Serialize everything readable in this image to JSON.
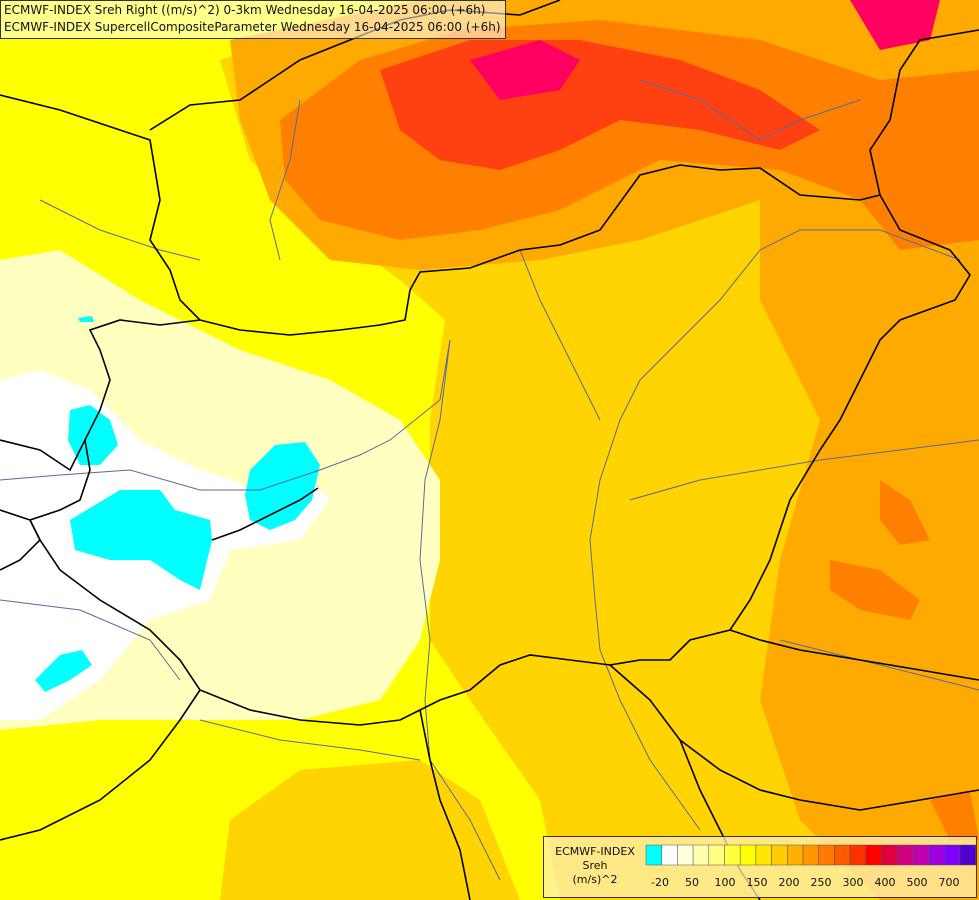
{
  "title": {
    "line1": "ECMWF-INDEX Sreh Right ((m/s)^2) 0-3km Wednesday 16-04-2025 06:00 (+6h)",
    "line2": "ECMWF-INDEX SupercellCompositeParameter Wednesday 16-04-2025 06:00 (+6h)"
  },
  "legend": {
    "source": "ECMWF-INDEX",
    "variable": "Sreh",
    "unit": "(m/s)^2",
    "colors": [
      "#00ffff",
      "#ffffff",
      "#ffffe0",
      "#ffffb0",
      "#ffff80",
      "#ffff40",
      "#ffff00",
      "#ffe600",
      "#ffcc00",
      "#ffb000",
      "#ff9600",
      "#ff7800",
      "#ff5a00",
      "#ff3000",
      "#ff0000",
      "#e00040",
      "#d00080",
      "#c000b0",
      "#a000e0",
      "#8000ff",
      "#5000d0",
      "#3000a0",
      "#100070"
    ],
    "tick_labels": [
      "-20",
      "50",
      "100",
      "150",
      "200",
      "250",
      "300",
      "400",
      "500",
      "700"
    ]
  },
  "palette": {
    "bg": "#ffff00",
    "light": "#ffffc0",
    "white": "#ffffff",
    "cyan": "#00ffff",
    "gold": "#ffd400",
    "orange": "#ffaa00",
    "darkorange": "#ff8000",
    "red": "#ff4010",
    "magenta": "#ff0060",
    "border": "#000000",
    "river": "#5a6a9a"
  }
}
